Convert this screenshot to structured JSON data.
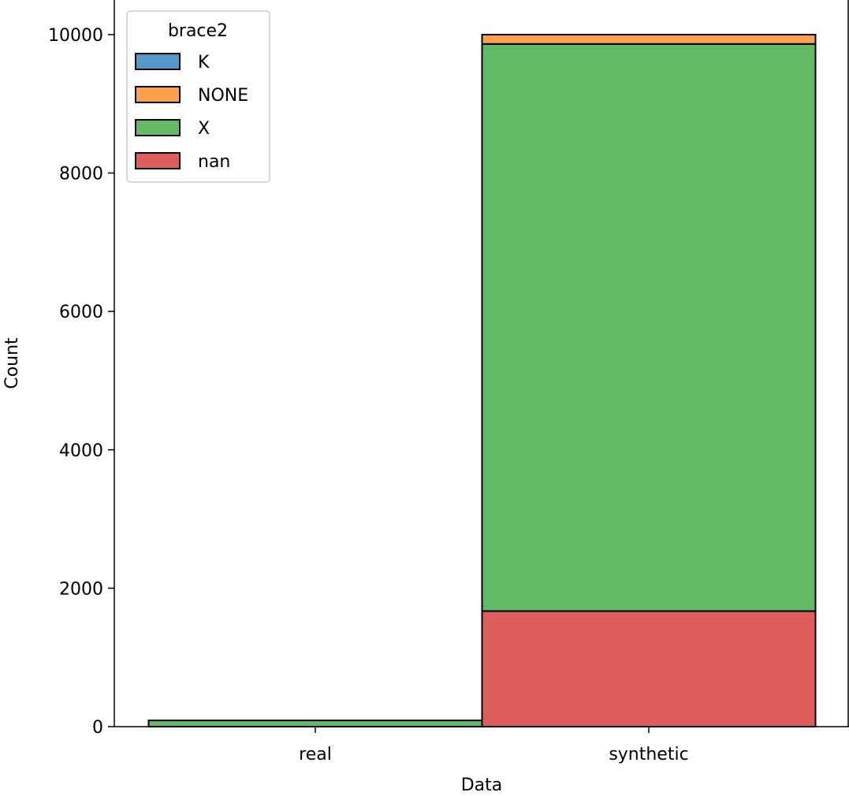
{
  "chart_data": {
    "type": "bar",
    "stacked": true,
    "categories": [
      "real",
      "synthetic"
    ],
    "series": [
      {
        "name": "K",
        "color": "#5599cc",
        "values": [
          0,
          0
        ]
      },
      {
        "name": "NONE",
        "color": "#ffa04c",
        "values": [
          0,
          135
        ]
      },
      {
        "name": "X",
        "color": "#64b964",
        "values": [
          90,
          8195
        ]
      },
      {
        "name": "nan",
        "color": "#e05d5d",
        "values": [
          0,
          1670
        ]
      }
    ],
    "stack_order": [
      "nan",
      "X",
      "NONE",
      "K"
    ],
    "xlabel": "Data",
    "ylabel": "Count",
    "ylim": [
      0,
      10500
    ],
    "yticks": [
      0,
      2000,
      4000,
      6000,
      8000,
      10000
    ],
    "legend": {
      "title": "brace2",
      "placement": "top-left"
    },
    "grid": false
  }
}
